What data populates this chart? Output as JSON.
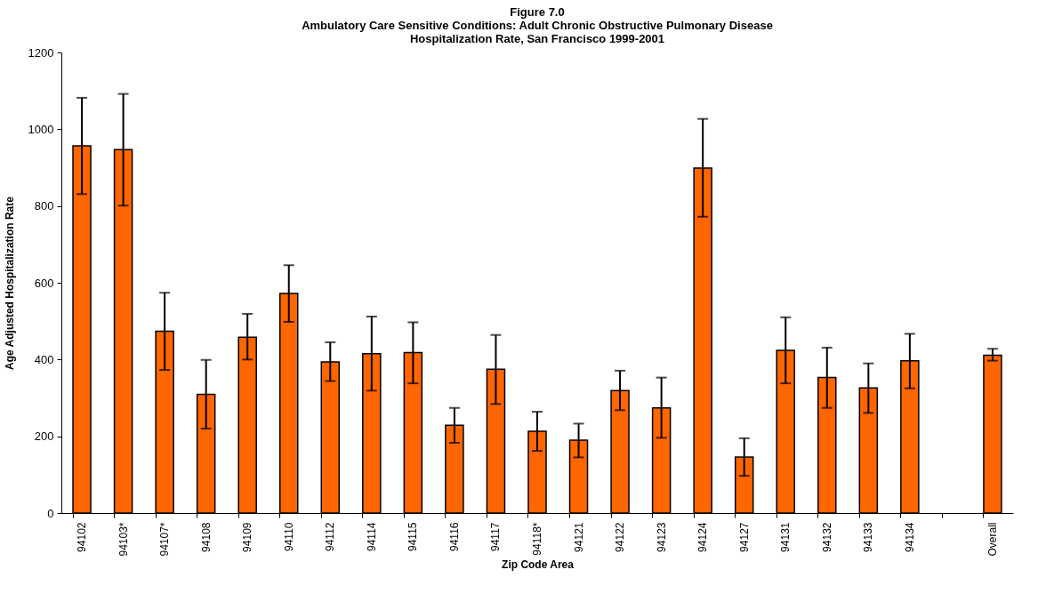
{
  "chart_data": {
    "type": "bar",
    "title": "Figure 7.0",
    "subtitle": "Ambulatory Care Sensitive Conditions: Adult Chronic Obstructive Pulmonary Disease Hospitalization Rate, San Francisco 1999-2001",
    "xlabel": "Zip Code Area",
    "ylabel": "Age Adjusted Hospitalization Rate",
    "categories": [
      "94102",
      "94103*",
      "94107*",
      "94108",
      "94109",
      "94110",
      "94112",
      "94114",
      "94115",
      "94116",
      "94117",
      "94118*",
      "94121",
      "94122",
      "94123",
      "94124",
      "94127",
      "94131",
      "94132",
      "94133",
      "94134",
      null,
      "Overall"
    ],
    "values": [
      957,
      947,
      474,
      309,
      458,
      572,
      394,
      415,
      418,
      229,
      375,
      213,
      190,
      319,
      274,
      899,
      146,
      424,
      353,
      326,
      397,
      null,
      411
    ],
    "errors": [
      [
        831,
        1082
      ],
      [
        801,
        1092
      ],
      [
        373,
        574
      ],
      [
        220,
        399
      ],
      [
        400,
        519
      ],
      [
        498,
        646
      ],
      [
        344,
        445
      ],
      [
        319,
        512
      ],
      [
        338,
        497
      ],
      [
        183,
        274
      ],
      [
        284,
        464
      ],
      [
        162,
        264
      ],
      [
        145,
        233
      ],
      [
        268,
        371
      ],
      [
        196,
        353
      ],
      [
        772,
        1027
      ],
      [
        97,
        195
      ],
      [
        338,
        510
      ],
      [
        274,
        431
      ],
      [
        261,
        390
      ],
      [
        325,
        467
      ],
      null,
      [
        397,
        428
      ]
    ],
    "color": "#ff6600",
    "ylim": [
      0,
      1200
    ],
    "yticks": [
      0,
      200,
      400,
      600,
      800,
      1000,
      1200
    ],
    "grid": false
  }
}
